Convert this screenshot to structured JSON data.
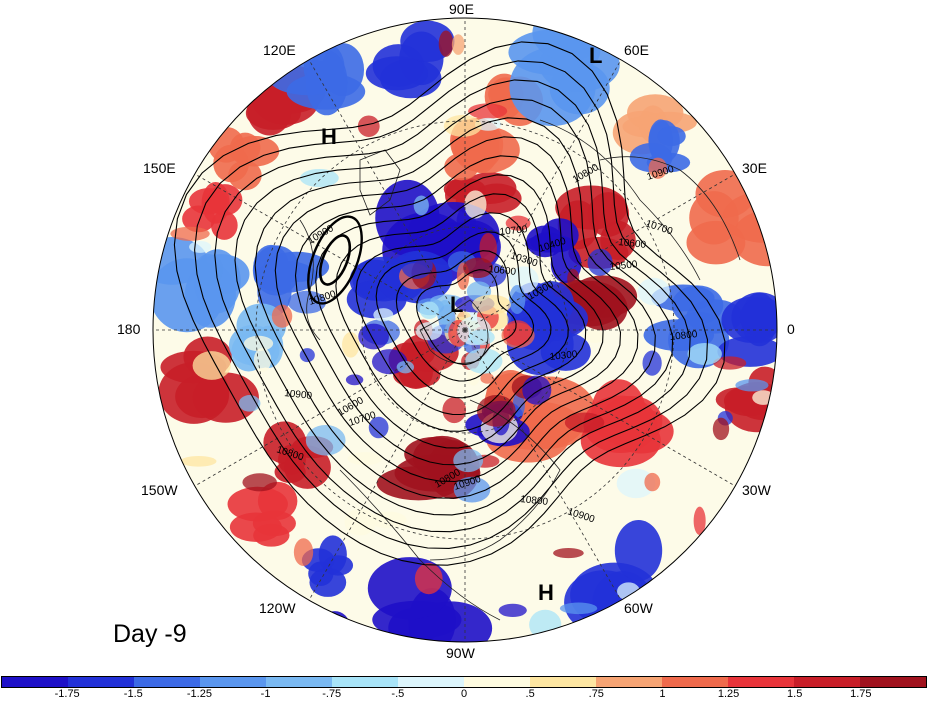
{
  "map": {
    "projection": "north polar stereographic",
    "field": "anomaly (shaded) with height contours",
    "longitude_labels": [
      "90E",
      "60E",
      "30E",
      "0",
      "30W",
      "60W",
      "90W",
      "120W",
      "150W",
      "180",
      "150E",
      "120E"
    ],
    "pressure_labels": [
      {
        "id": "L1",
        "text": "L"
      },
      {
        "id": "L2",
        "text": "L"
      },
      {
        "id": "H1",
        "text": "H"
      },
      {
        "id": "H2",
        "text": "H"
      }
    ],
    "contour_labels": [
      "10900",
      "10800",
      "10700",
      "10600",
      "10300",
      "10300",
      "10400",
      "10500",
      "10600",
      "10700",
      "10800",
      "10900",
      "10800",
      "10900",
      "10800",
      "10600",
      "10700",
      "10300",
      "10800",
      "10900",
      "10800",
      "10900"
    ],
    "shading_colors": {
      "negative_strong": "#1a1ac8",
      "negative": "#5a8ef0",
      "neutral": "#fdfbe8",
      "positive": "#ef5a3c",
      "positive_strong": "#b8141e"
    }
  },
  "caption": "Day -9",
  "colorbar": {
    "tick_labels": [
      "-1.75",
      "-1.5",
      "-1.25",
      "-1",
      "-.75",
      "-.5",
      "0",
      ".5",
      ".75",
      "1",
      "1.25",
      "1.5",
      "1.75"
    ],
    "colors": [
      "#1e10c8",
      "#2231d8",
      "#3c6ae6",
      "#5a96ee",
      "#7ab9f2",
      "#a8e4f8",
      "#dcf5fc",
      "#fefbe0",
      "#fde6a2",
      "#f6a474",
      "#ef6a4c",
      "#e8343a",
      "#c81e28",
      "#a0121e"
    ]
  }
}
